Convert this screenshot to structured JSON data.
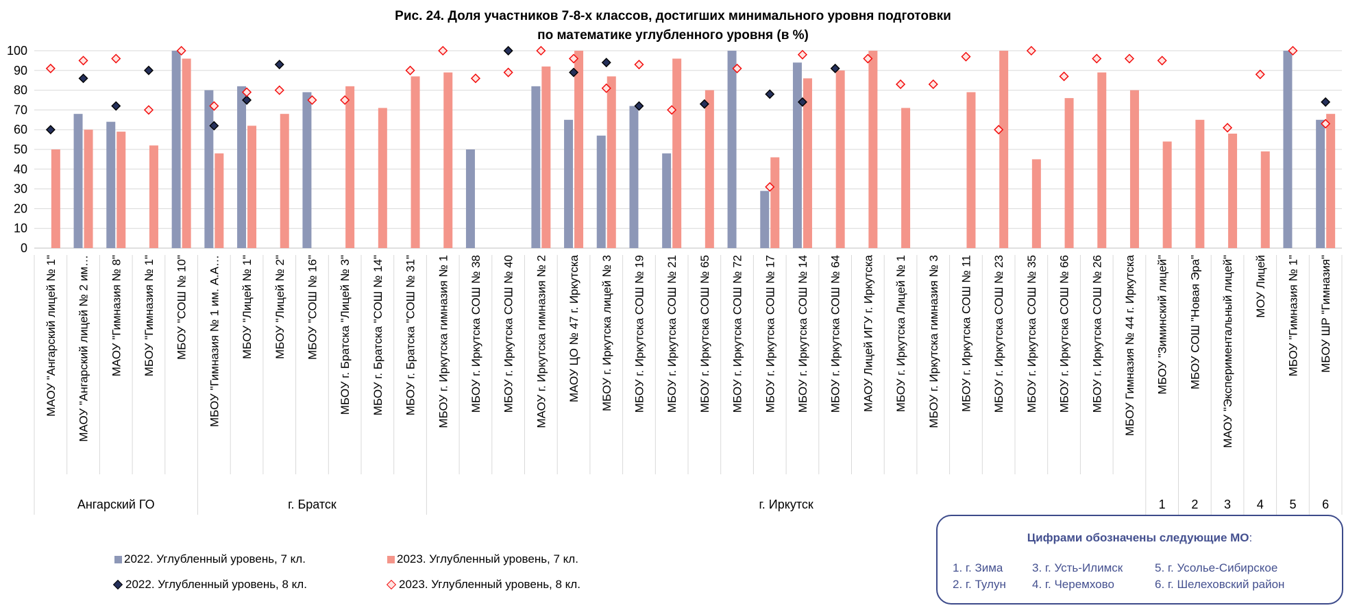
{
  "title_line1": "Рис. 24. Доля участников 7-8-х классов, достигших минимального уровня подготовки",
  "title_line2": "по математике углубленного уровня (в %)",
  "colors": {
    "bar2022": "#8d97b7",
    "bar2023": "#f4958a",
    "mark2022_fill": "#25305a",
    "mark2023_fill": "#ffe4e1",
    "mark2023_stroke": "#f20d0d",
    "grid": "#d9d9d9"
  },
  "chart_data": {
    "type": "bar",
    "title": "Рис. 24. Доля участников 7-8-х классов, достигших минимального уровня подготовки по математике углубленного уровня (в %)",
    "ylim": [
      0,
      100
    ],
    "y_ticks": [
      "0",
      "10",
      "20",
      "30",
      "40",
      "50",
      "60",
      "70",
      "80",
      "90",
      "100"
    ],
    "grid": "horizontal",
    "legend_position": "bottom-left",
    "categories": [
      "МАОУ \"Ангарский лицей № 1\"",
      "МАОУ \"Ангарский лицей № 2 им…",
      "МАОУ \"Гимназия № 8\"",
      "МБОУ \"Гимназия № 1\"",
      "МБОУ \"СОШ № 10\"",
      "МБОУ \"Гимназия № 1 им. А.А…",
      "МБОУ \"Лицей № 1\"",
      "МБОУ \"Лицей № 2\"",
      "МБОУ \"СОШ № 16\"",
      "МБОУ г. Братска \"Лицей № 3\"",
      "МБОУ г. Братска \"СОШ № 14\"",
      "МБОУ г. Братска \"СОШ № 31\"",
      "МБОУ г. Иркутска гимназия № 1",
      "МБОУ г. Иркутска СОШ № 38",
      "МБОУ г. Иркутска СОШ № 40",
      "МАОУ г. Иркутска гимназия № 2",
      "МАОУ ЦО № 47 г. Иркутска",
      "МБОУ г. Иркутска лицей № 3",
      "МБОУ г. Иркутска СОШ № 19",
      "МБОУ г. Иркутска СОШ № 21",
      "МБОУ г. Иркутска СОШ № 65",
      "МБОУ г. Иркутска СОШ № 72",
      "МБОУ г. Иркутска СОШ № 17",
      "МБОУ г. Иркутска СОШ № 14",
      "МБОУ г. Иркутска СОШ № 64",
      "МАОУ Лицей ИГУ г. Иркутска",
      "МБОУ г. Иркутска Лицей № 1",
      "МБОУ г. Иркутска гимназия № 3",
      "МБОУ г. Иркутска СОШ № 11",
      "МБОУ г. Иркутска СОШ № 23",
      "МБОУ г. Иркутска СОШ № 35",
      "МБОУ г. Иркутска СОШ № 66",
      "МБОУ г. Иркутска СОШ № 26",
      "МБОУ Гимназия № 44 г. Иркутска",
      "МБОУ \"Зиминский лицей\"",
      "МБОУ СОШ \"Новая Эра\"",
      "МАОУ \"Экспериментальный лицей\"",
      "МОУ Лицей",
      "МБОУ \"Гимназия № 1\"",
      "МБОУ ШР \"Гимназия\""
    ],
    "groups": [
      {
        "label": "Ангарский ГО",
        "start": 0,
        "end": 4
      },
      {
        "label": "г. Братск",
        "start": 5,
        "end": 11
      },
      {
        "label": "г. Иркутск",
        "start": 12,
        "end": 33
      },
      {
        "label": "1",
        "start": 34,
        "end": 34
      },
      {
        "label": "2",
        "start": 35,
        "end": 35
      },
      {
        "label": "3",
        "start": 36,
        "end": 36
      },
      {
        "label": "4",
        "start": 37,
        "end": 37
      },
      {
        "label": "5",
        "start": 38,
        "end": 38
      },
      {
        "label": "6",
        "start": 39,
        "end": 39
      }
    ],
    "series": [
      {
        "name": "2022. Углубленный уровень, 7 кл.",
        "kind": "bar",
        "values": [
          null,
          68,
          64,
          null,
          100,
          80,
          82,
          null,
          79,
          null,
          null,
          null,
          null,
          50,
          null,
          82,
          65,
          57,
          72,
          48,
          null,
          100,
          29,
          94,
          null,
          null,
          null,
          null,
          null,
          null,
          null,
          null,
          null,
          null,
          null,
          null,
          null,
          null,
          100,
          65
        ]
      },
      {
        "name": "2023. Углубленный уровень, 7 кл.",
        "kind": "bar",
        "values": [
          50,
          60,
          59,
          52,
          96,
          48,
          62,
          68,
          null,
          82,
          71,
          87,
          89,
          null,
          null,
          92,
          100,
          87,
          null,
          96,
          80,
          null,
          46,
          86,
          90,
          100,
          71,
          null,
          79,
          100,
          45,
          76,
          89,
          80,
          54,
          65,
          58,
          49,
          null,
          68
        ]
      },
      {
        "name": "2022. Углубленный уровень, 8 кл.",
        "kind": "marker",
        "values": [
          60,
          86,
          72,
          90,
          null,
          62,
          75,
          93,
          null,
          null,
          null,
          null,
          null,
          null,
          100,
          null,
          89,
          94,
          72,
          null,
          73,
          null,
          78,
          74,
          91,
          null,
          null,
          null,
          null,
          null,
          null,
          null,
          null,
          null,
          null,
          null,
          null,
          null,
          null,
          74
        ]
      },
      {
        "name": "2023. Углубленный уровень, 8 кл.",
        "kind": "marker",
        "values": [
          91,
          95,
          96,
          70,
          100,
          72,
          79,
          80,
          75,
          75,
          null,
          90,
          100,
          86,
          89,
          100,
          96,
          81,
          93,
          70,
          null,
          91,
          31,
          98,
          null,
          96,
          83,
          83,
          97,
          60,
          100,
          87,
          96,
          96,
          95,
          null,
          61,
          88,
          100,
          63
        ]
      }
    ]
  },
  "legend": [
    {
      "label": "2022. Углубленный уровень, 7 кл.",
      "icon": "bar-swatch-2022"
    },
    {
      "label": "2023. Углубленный уровень, 7 кл.",
      "icon": "bar-swatch-2023"
    },
    {
      "label": "2022. Углубленный уровень, 8 кл.",
      "icon": "diamond-marker-2022"
    },
    {
      "label": "2023. Углубленный уровень, 8 кл.",
      "icon": "diamond-marker-2023"
    }
  ],
  "mo_box": {
    "title": "Цифрами обозначены следующие МО",
    "colon": ":",
    "items": [
      "1. г. Зима",
      "2. г. Тулун",
      "3. г. Усть-Илимск",
      "4. г. Черемхово",
      "5. г. Усолье-Сибирское",
      "6. г. Шелеховский район"
    ]
  }
}
